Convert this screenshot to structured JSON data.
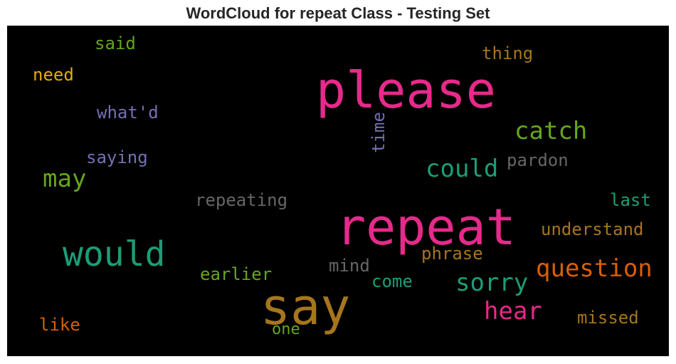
{
  "title": "WordCloud for repeat Class - Testing Set",
  "words": [
    {
      "text": "please",
      "color": "#e7298a"
    },
    {
      "text": "repeat",
      "color": "#e7298a"
    },
    {
      "text": "say",
      "color": "#a6761d"
    },
    {
      "text": "would",
      "color": "#1b9e77"
    },
    {
      "text": "catch",
      "color": "#66a61e"
    },
    {
      "text": "could",
      "color": "#1b9e77"
    },
    {
      "text": "question",
      "color": "#d95f02"
    },
    {
      "text": "sorry",
      "color": "#1b9e77"
    },
    {
      "text": "hear",
      "color": "#e7298a"
    },
    {
      "text": "may",
      "color": "#66a61e"
    },
    {
      "text": "said",
      "color": "#66a61e"
    },
    {
      "text": "need",
      "color": "#e6ab02"
    },
    {
      "text": "what'd",
      "color": "#7570b3"
    },
    {
      "text": "saying",
      "color": "#7570b3"
    },
    {
      "text": "thing",
      "color": "#a6761d"
    },
    {
      "text": "time",
      "color": "#7570b3"
    },
    {
      "text": "pardon",
      "color": "#666666"
    },
    {
      "text": "repeating",
      "color": "#666666"
    },
    {
      "text": "last",
      "color": "#1b9e77"
    },
    {
      "text": "understand",
      "color": "#a6761d"
    },
    {
      "text": "phrase",
      "color": "#a6761d"
    },
    {
      "text": "mind",
      "color": "#666666"
    },
    {
      "text": "earlier",
      "color": "#66a61e"
    },
    {
      "text": "come",
      "color": "#1b9e77"
    },
    {
      "text": "missed",
      "color": "#a6761d"
    },
    {
      "text": "like",
      "color": "#d95f02"
    },
    {
      "text": "one",
      "color": "#66a61e"
    }
  ]
}
